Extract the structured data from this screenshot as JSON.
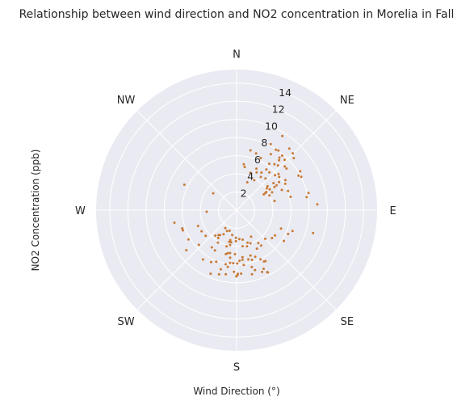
{
  "chart_data": {
    "type": "scatter",
    "projection": "polar",
    "title": "Relationship between wind direction and NO2 concentration in Morelia in Fall",
    "xlabel": "Wind Direction (°)",
    "ylabel": "NO2 Concentration (ppb)",
    "theta_zero": "N",
    "theta_direction": "clockwise",
    "direction_labels": [
      "N",
      "NE",
      "E",
      "SE",
      "S",
      "SW",
      "W",
      "NW"
    ],
    "r_ticks": [
      "2",
      "4",
      "6",
      "8",
      "10",
      "12",
      "14"
    ],
    "r_tick_values": [
      2,
      4,
      6,
      8,
      10,
      12,
      14
    ],
    "rlim": [
      0,
      15.5
    ],
    "grid": true,
    "marker_color": "#c87a36",
    "background_color": "#eaeaf2",
    "points": [
      [
        39.9,
        7.84
      ],
      [
        35.2,
        6.26
      ],
      [
        47.8,
        7.18
      ],
      [
        42.4,
        4.73
      ],
      [
        24.9,
        6.33
      ],
      [
        60.9,
        7.82
      ],
      [
        33.1,
        7.94
      ],
      [
        10.6,
        4.84
      ],
      [
        47.7,
        8.53
      ],
      [
        49.3,
        6.1
      ],
      [
        53.8,
        5.05
      ],
      [
        69.6,
        6.05
      ],
      [
        76.1,
        6.13
      ],
      [
        33.5,
        4.97
      ],
      [
        52.3,
        4.31
      ],
      [
        79.5,
        7.86
      ],
      [
        42.7,
        6.72
      ],
      [
        8.9,
        5.11
      ],
      [
        31.5,
        7.23
      ],
      [
        76.3,
        4.31
      ],
      [
        63.3,
        4.39
      ],
      [
        58.2,
        5.19
      ],
      [
        20.4,
        4.4
      ],
      [
        56.5,
        5.62
      ],
      [
        59.8,
        3.47
      ],
      [
        13.1,
        6.77
      ],
      [
        62.7,
        8.03
      ],
      [
        31.7,
        9.6
      ],
      [
        43.7,
        7.67
      ],
      [
        39.5,
        6.57
      ],
      [
        44.7,
        8.82
      ],
      [
        58.6,
        8.22
      ],
      [
        58.6,
        4.89
      ],
      [
        52.1,
        5.96
      ],
      [
        35.1,
        8.03
      ],
      [
        65.9,
        5.46
      ],
      [
        41.0,
        5.51
      ],
      [
        36.1,
        4.53
      ],
      [
        27.3,
        8.2
      ],
      [
        65.9,
        3.97
      ],
      [
        18.9,
        6.62
      ],
      [
        59.3,
        3.7
      ],
      [
        85.8,
        8.93
      ],
      [
        50.2,
        7.17
      ],
      [
        40.6,
        8.94
      ],
      [
        58.3,
        6.32
      ],
      [
        57.9,
        4.31
      ],
      [
        36.2,
        5.56
      ],
      [
        30.5,
        3.84
      ],
      [
        61.6,
        6.1
      ],
      [
        40.4,
        7.23
      ],
      [
        47.7,
        5.73
      ],
      [
        25.5,
        5.07
      ],
      [
        39.2,
        7.47
      ],
      [
        21.0,
        3.29
      ],
      [
        27.9,
        4.72
      ],
      [
        76.6,
        8.15
      ],
      [
        54.2,
        4.11
      ],
      [
        58.7,
        3.85
      ],
      [
        296.0,
        6.41
      ],
      [
        305.9,
        3.18
      ],
      [
        258.6,
        7.0
      ],
      [
        249.4,
        6.33
      ],
      [
        251.5,
        6.32
      ],
      [
        267.0,
        3.31
      ],
      [
        238.7,
        6.21
      ],
      [
        247.8,
        4.59
      ],
      [
        231.5,
        7.09
      ],
      [
        212.4,
        2.33
      ],
      [
        230.3,
        4.44
      ],
      [
        239.0,
        4.51
      ],
      [
        227.4,
        5.65
      ],
      [
        206.2,
        6.38
      ],
      [
        193.2,
        3.59
      ],
      [
        213.7,
        4.93
      ],
      [
        193.8,
        4.97
      ],
      [
        214.3,
        6.58
      ],
      [
        219.9,
        3.66
      ],
      [
        204.8,
        2.53
      ],
      [
        188.8,
        6.34
      ],
      [
        209.9,
        4.12
      ],
      [
        216.0,
        3.4
      ],
      [
        208.3,
        5.03
      ],
      [
        201.6,
        6.11
      ],
      [
        213.8,
        3.29
      ],
      [
        183.7,
        5.86
      ],
      [
        180.2,
        7.3
      ],
      [
        187.8,
        5.28
      ],
      [
        179.2,
        7.15
      ],
      [
        188.7,
        4.78
      ],
      [
        165.0,
        6.48
      ],
      [
        208.3,
        3.02
      ],
      [
        191.9,
        3.37
      ],
      [
        195.5,
        4.14
      ],
      [
        166.5,
        7.26
      ],
      [
        168.4,
        3.32
      ],
      [
        157.6,
        7.36
      ],
      [
        190.6,
        3.91
      ],
      [
        181.3,
        3.04
      ],
      [
        181.4,
        3.42
      ],
      [
        179.3,
        5.88
      ],
      [
        162.9,
        6.91
      ],
      [
        198.9,
        2.4
      ],
      [
        166.6,
        5.58
      ],
      [
        163.0,
        5.23
      ],
      [
        152.1,
        4.8
      ],
      [
        157.2,
        3.96
      ],
      [
        175.9,
        7.01
      ],
      [
        154.0,
        6.02
      ],
      [
        173.2,
        5.51
      ],
      [
        174.6,
        3.19
      ],
      [
        170.6,
        4.03
      ],
      [
        164.0,
        4.13
      ],
      [
        128.2,
        4.97
      ],
      [
        123.0,
        6.21
      ],
      [
        151.9,
        6.41
      ],
      [
        176.7,
        5.59
      ],
      [
        145.3,
        4.75
      ],
      [
        146.6,
        4.35
      ],
      [
        151.3,
        3.33
      ],
      [
        106.6,
        8.8
      ],
      [
        134.9,
        4.47
      ],
      [
        187.1,
        5.85
      ],
      [
        153.3,
        7.68
      ],
      [
        150.4,
        6.45
      ],
      [
        172.6,
        6.09
      ],
      [
        189.6,
        3.6
      ],
      [
        189.6,
        7.16
      ],
      [
        195.0,
        6.74
      ],
      [
        213.5,
        3.67
      ],
      [
        161.3,
        3.79
      ],
      [
        162.8,
        5.73
      ],
      [
        195.3,
        7.33
      ],
      [
        191.4,
        6.08
      ],
      [
        158.2,
        5.53
      ],
      [
        114.7,
        6.26
      ],
      [
        182.5,
        6.8
      ],
      [
        190.0,
        2.79
      ],
      [
        155.2,
        7.11
      ],
      [
        178.8,
        7.01
      ],
      [
        182.1,
        4.85
      ],
      [
        202.3,
        7.57
      ],
      [
        110.4,
        6.59
      ],
      [
        123.2,
        5.07
      ],
      [
        112.4,
        5.3
      ],
      [
        191.7,
        4.85
      ],
      [
        172.8,
        5.22
      ],
      [
        153.7,
        7.61
      ]
    ]
  }
}
